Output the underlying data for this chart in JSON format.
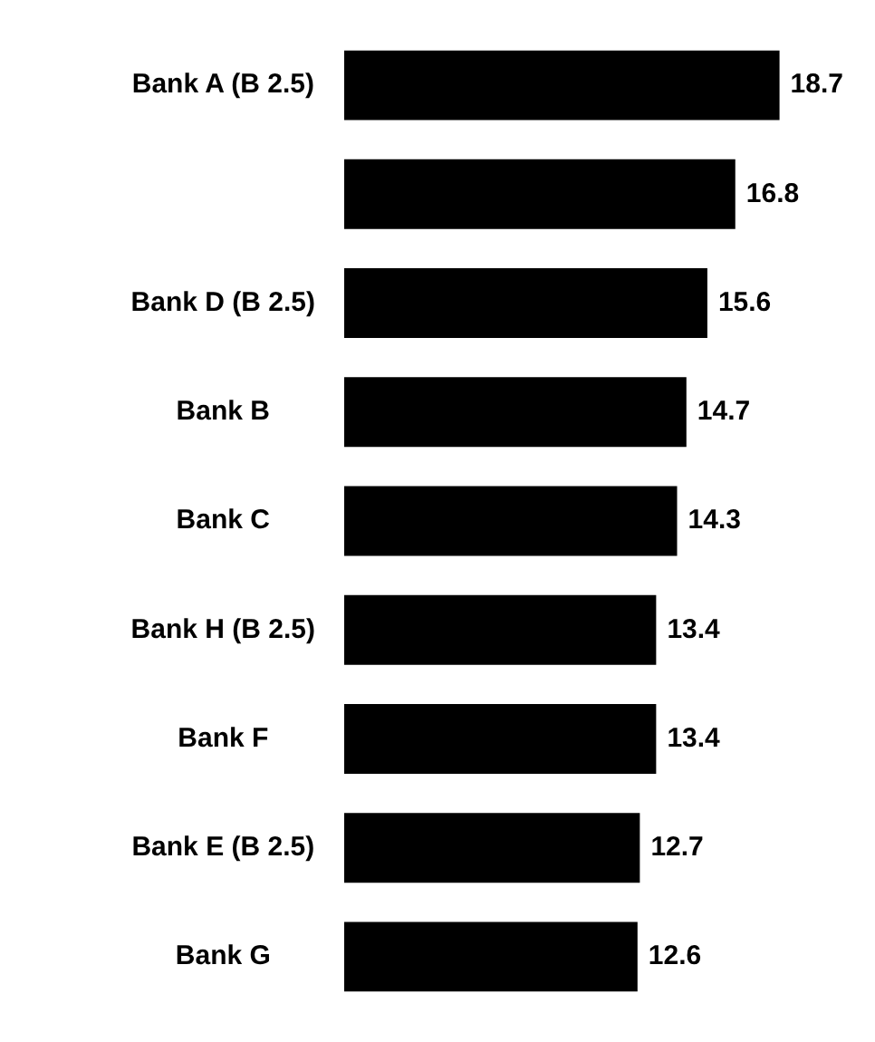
{
  "chart_data": {
    "type": "bar",
    "orientation": "horizontal",
    "categories": [
      "Bank A (B 2.5)",
      null,
      "Bank D (B 2.5)",
      "Bank B",
      "Bank C",
      "Bank H (B 2.5)",
      "Bank F",
      "Bank E (B 2.5)",
      "Bank G"
    ],
    "values": [
      18.7,
      16.8,
      15.6,
      14.7,
      14.3,
      13.4,
      13.4,
      12.7,
      12.6
    ],
    "color": "#000000",
    "data_labels": true,
    "grid": false,
    "legend": false
  }
}
